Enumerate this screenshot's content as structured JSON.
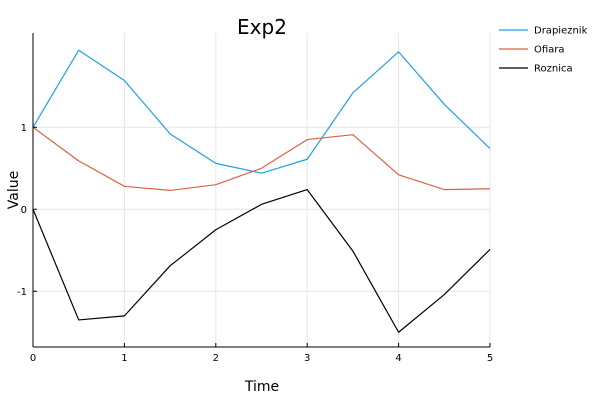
{
  "chart_data": {
    "type": "line",
    "title": "Exp2",
    "xlabel": "Time",
    "ylabel": "Value",
    "xlim": [
      0,
      5
    ],
    "ylim": [
      -1.68,
      2.15
    ],
    "xticks": [
      0,
      1,
      2,
      3,
      4,
      5
    ],
    "yticks": [
      -1,
      0,
      1
    ],
    "grid": true,
    "legend_position": "top-right-outside",
    "x": [
      0,
      0.5,
      1,
      1.5,
      2,
      2.5,
      3,
      3.5,
      4,
      4.5,
      5
    ],
    "series": [
      {
        "name": "Drapieznik",
        "color": "#1fa2e0",
        "values": [
          1.0,
          1.94,
          1.57,
          0.92,
          0.56,
          0.44,
          0.61,
          1.42,
          1.92,
          1.28,
          0.74
        ]
      },
      {
        "name": "Ofiara",
        "color": "#e0603f",
        "values": [
          1.0,
          0.59,
          0.28,
          0.23,
          0.3,
          0.5,
          0.85,
          0.91,
          0.42,
          0.24,
          0.25
        ]
      },
      {
        "name": "Roznica",
        "color": "#000000",
        "values": [
          0.0,
          -1.35,
          -1.3,
          -0.69,
          -0.25,
          0.06,
          0.24,
          -0.51,
          -1.5,
          -1.04,
          -0.49
        ]
      }
    ]
  }
}
